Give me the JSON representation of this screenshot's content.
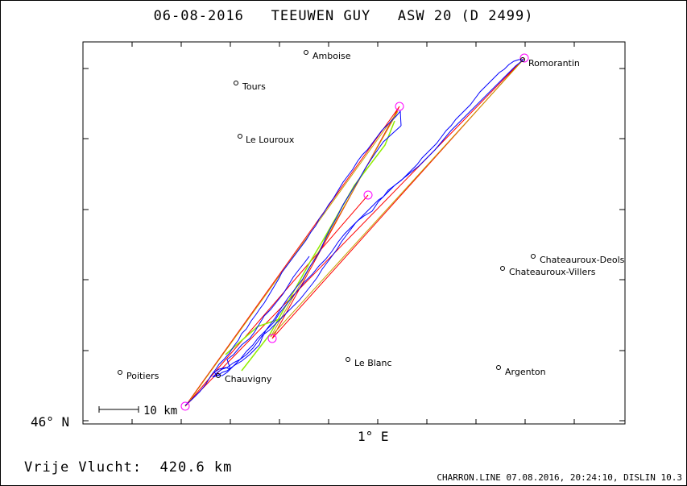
{
  "header": {
    "title": "06-08-2016   TEEUWEN GUY   ASW 20 (D 2499)"
  },
  "axes": {
    "y_label": "46° N",
    "x_label": "1° E"
  },
  "scale_bar": {
    "label": "10 km"
  },
  "footer": {
    "distance": "Vrije Vlucht:  420.6 km",
    "credit": "CHARRON.LINE 07.08.2016, 20:24:10, DISLIN 10.3"
  },
  "towns": [
    {
      "name": "Amboise"
    },
    {
      "name": "Tours"
    },
    {
      "name": "Le Louroux"
    },
    {
      "name": "Romorantin"
    },
    {
      "name": "Chateauroux-Deols"
    },
    {
      "name": "Chateauroux-Villers"
    },
    {
      "name": "Le Blanc"
    },
    {
      "name": "Argenton"
    },
    {
      "name": "Poitiers"
    },
    {
      "name": "Chauvigny"
    }
  ],
  "colors": {
    "track": "#0000ff",
    "task": "#ff0000",
    "leg": "#90ee00",
    "turnpoint": "#ff00ff",
    "optimized": "#c8a000"
  }
}
